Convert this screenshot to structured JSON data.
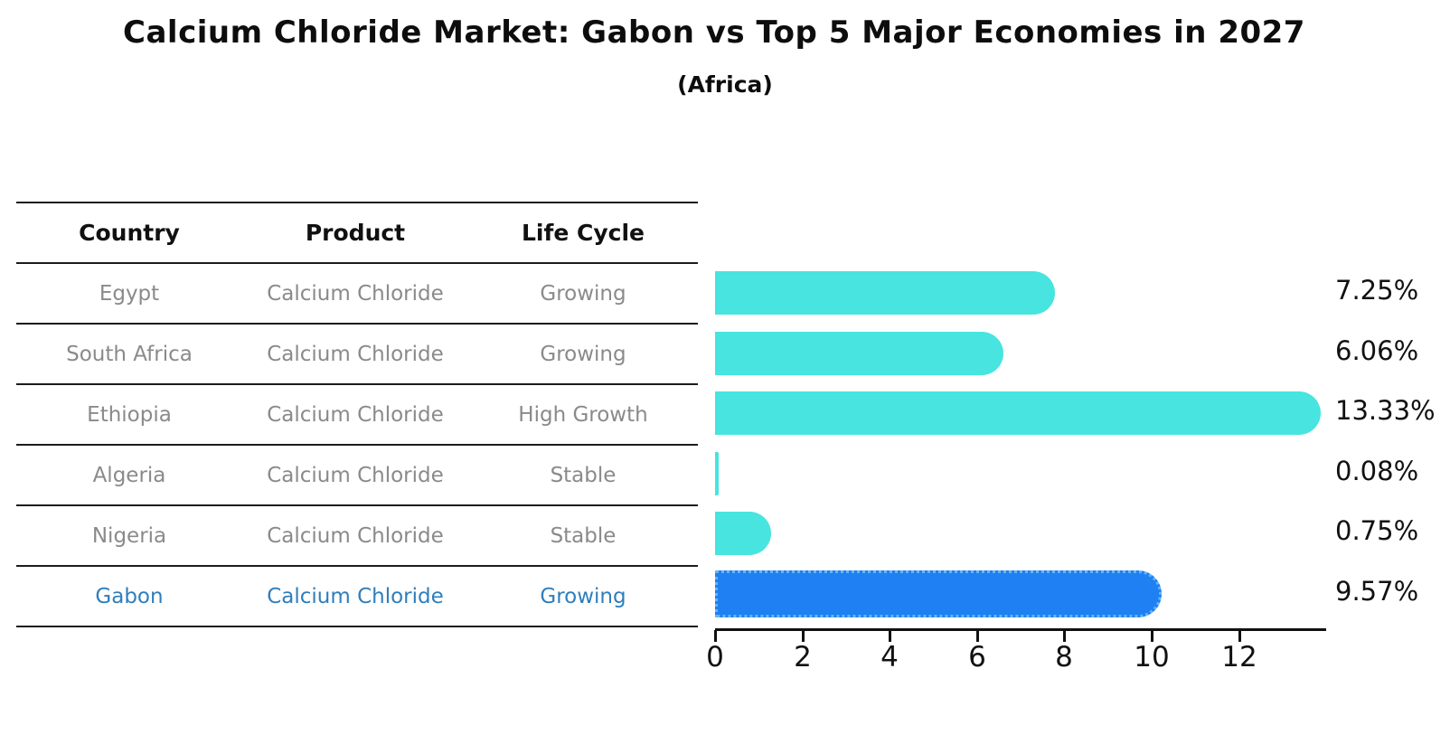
{
  "header": {
    "title": "Calcium Chloride Market: Gabon vs Top 5 Major Economies in 2027",
    "subtitle": "(Africa)"
  },
  "table": {
    "headers": [
      "Country",
      "Product",
      "Life Cycle"
    ],
    "rows": [
      {
        "country": "Egypt",
        "product": "Calcium Chloride",
        "life_cycle": "Growing",
        "highlight": false
      },
      {
        "country": "South Africa",
        "product": "Calcium Chloride",
        "life_cycle": "Growing",
        "highlight": false
      },
      {
        "country": "Ethiopia",
        "product": "Calcium Chloride",
        "life_cycle": "High Growth",
        "highlight": false
      },
      {
        "country": "Algeria",
        "product": "Calcium Chloride",
        "life_cycle": "Stable",
        "highlight": false
      },
      {
        "country": "Nigeria",
        "product": "Calcium Chloride",
        "life_cycle": "Stable",
        "highlight": false
      },
      {
        "country": "Gabon",
        "product": "Calcium Chloride",
        "life_cycle": "Growing",
        "highlight": true
      }
    ]
  },
  "chart_data": {
    "type": "bar",
    "orientation": "horizontal",
    "title": "Calcium Chloride Market: Gabon vs Top 5 Major Economies in 2027",
    "subtitle": "(Africa)",
    "categories": [
      "Egypt",
      "South Africa",
      "Ethiopia",
      "Algeria",
      "Nigeria",
      "Gabon"
    ],
    "values": [
      7.25,
      6.06,
      13.33,
      0.08,
      0.75,
      9.57
    ],
    "value_labels": [
      "7.25%",
      "6.06%",
      "13.33%",
      "0.08%",
      "0.75%",
      "9.57%"
    ],
    "highlight_index": 5,
    "xlabel": "",
    "ylabel": "",
    "xticks": [
      0,
      2,
      4,
      6,
      8,
      10,
      12
    ],
    "xlim": [
      0,
      14
    ],
    "grid": false,
    "legend": "none",
    "bar_color": "#47e4e0",
    "highlight_bar_color": "#1e80f2",
    "highlight_border_color": "#66b5f7",
    "text_color": "#8a8a8a",
    "highlight_text_color": "#2e7ebd"
  }
}
